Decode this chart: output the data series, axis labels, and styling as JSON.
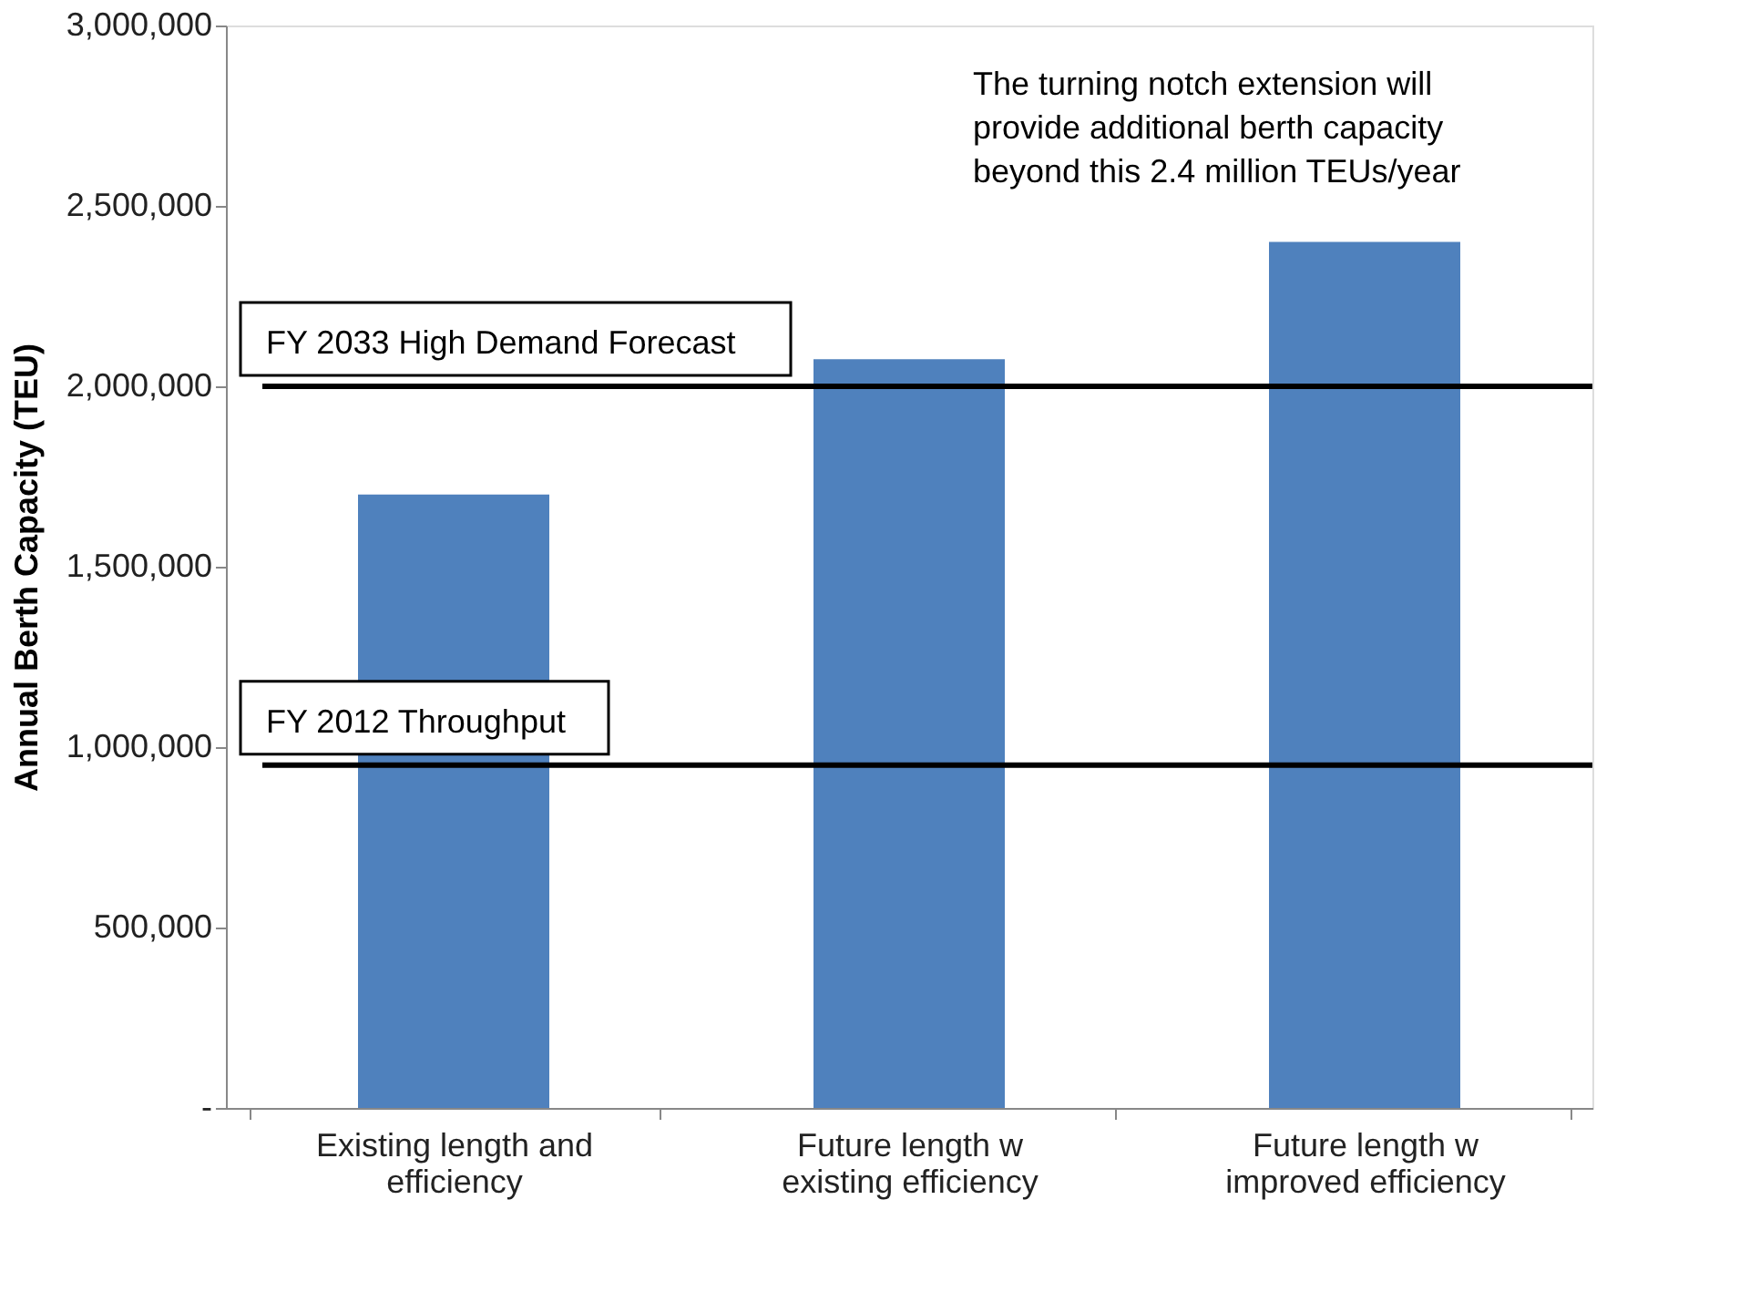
{
  "chart_data": {
    "type": "bar",
    "ylabel": "Annual Berth Capacity (TEU)",
    "categories": [
      "Existing length and efficiency",
      "Future length w existing efficiency",
      "Future length w improved efficiency"
    ],
    "values": [
      1700000,
      2075000,
      2400000
    ],
    "color": "#4f81bd",
    "ylim": [
      0,
      3000000
    ],
    "yticks": [
      {
        "value": 0,
        "label": "-"
      },
      {
        "value": 500000,
        "label": "500,000"
      },
      {
        "value": 1000000,
        "label": "1,000,000"
      },
      {
        "value": 1500000,
        "label": "1,500,000"
      },
      {
        "value": 2000000,
        "label": "2,000,000"
      },
      {
        "value": 2500000,
        "label": "2,500,000"
      },
      {
        "value": 3000000,
        "label": "3,000,000"
      }
    ],
    "grid": false,
    "ref_lines": [
      {
        "axis": "y",
        "value": 2000000,
        "label": "FY 2033 High Demand Forecast",
        "color": "#000000"
      },
      {
        "axis": "y",
        "value": 950000,
        "label": "FY 2012 Throughput",
        "color": "#000000"
      }
    ],
    "annotations": [
      "The turning notch extension will provide additional berth capacity beyond this 2.4 million TEUs/year"
    ]
  }
}
